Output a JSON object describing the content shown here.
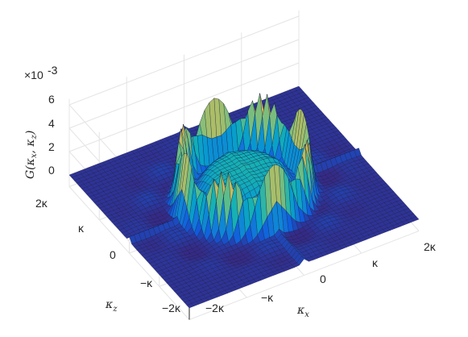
{
  "chart_data": {
    "type": "surface",
    "title": "",
    "xlabel": "κx",
    "ylabel": "κz",
    "zlabel": "G(κx, κz)",
    "z_exponent_label": "×10-3",
    "x_ticks": [
      "−2κ",
      "−κ",
      "0",
      "κ",
      "2κ"
    ],
    "z_ticks_kappa": [
      "−2κ",
      "−κ",
      "0",
      "κ",
      "2κ"
    ],
    "vertical_ticks": [
      "0",
      "2",
      "4",
      "6"
    ],
    "x_range": [
      -2,
      2
    ],
    "y_range": [
      -2,
      2
    ],
    "zlim": [
      -0.001,
      0.0065
    ],
    "colormap": "parula",
    "grid": true,
    "surface_model": {
      "floor": 0.0,
      "ring_radius": 1.0,
      "ring_peak": 0.0055,
      "peak_lobes": 8,
      "center_level": 0.0025,
      "ridge_level": 0.0004
    }
  }
}
